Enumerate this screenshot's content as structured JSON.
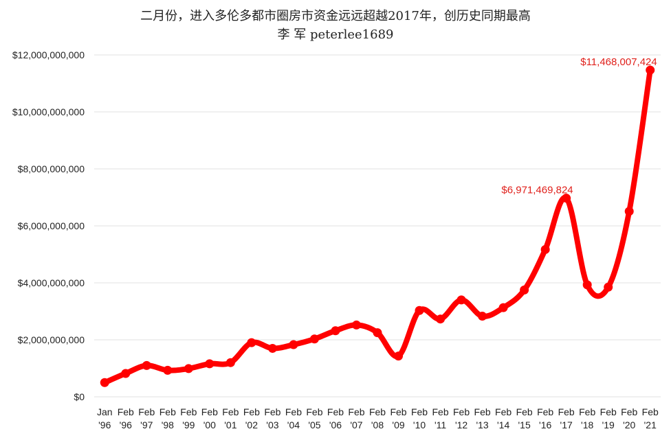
{
  "chart_data": {
    "type": "line",
    "title": "二月份，进入多伦多都市圈房市资金远远超越2017年，创历史同期最高",
    "subtitle": "李 军  peterlee1689",
    "categories": [
      [
        "Jan",
        "'96"
      ],
      [
        "Feb",
        "'96"
      ],
      [
        "Feb",
        "'97"
      ],
      [
        "Feb",
        "'98"
      ],
      [
        "Feb",
        "'99"
      ],
      [
        "Feb",
        "'00"
      ],
      [
        "Feb",
        "'01"
      ],
      [
        "Feb",
        "'02"
      ],
      [
        "Feb",
        "'03"
      ],
      [
        "Feb",
        "'04"
      ],
      [
        "Feb",
        "'05"
      ],
      [
        "Feb",
        "'06"
      ],
      [
        "Feb",
        "'07"
      ],
      [
        "Feb",
        "'08"
      ],
      [
        "Feb",
        "'09"
      ],
      [
        "Feb",
        "'10"
      ],
      [
        "Feb",
        "'11"
      ],
      [
        "Feb",
        "'12"
      ],
      [
        "Feb",
        "'13"
      ],
      [
        "Feb",
        "'14"
      ],
      [
        "Feb",
        "'15"
      ],
      [
        "Feb",
        "'16"
      ],
      [
        "Feb",
        "'17"
      ],
      [
        "Feb",
        "'18"
      ],
      [
        "Feb",
        "'19"
      ],
      [
        "Feb",
        "'20"
      ],
      [
        "Feb",
        "'21"
      ]
    ],
    "values": [
      500000000,
      820000000,
      1100000000,
      930000000,
      990000000,
      1160000000,
      1200000000,
      1900000000,
      1700000000,
      1830000000,
      2030000000,
      2320000000,
      2520000000,
      2250000000,
      1430000000,
      3030000000,
      2730000000,
      3400000000,
      2830000000,
      3130000000,
      3750000000,
      5170000000,
      6971469824,
      3930000000,
      3850000000,
      6510000000,
      11468007424
    ],
    "ylim": [
      0,
      12000000000
    ],
    "yticks": [
      {
        "value": 0,
        "label": "$0"
      },
      {
        "value": 2000000000,
        "label": "$2,000,000,000"
      },
      {
        "value": 4000000000,
        "label": "$4,000,000,000"
      },
      {
        "value": 6000000000,
        "label": "$6,000,000,000"
      },
      {
        "value": 8000000000,
        "label": "$8,000,000,000"
      },
      {
        "value": 10000000000,
        "label": "$10,000,000,000"
      },
      {
        "value": 12000000000,
        "label": "$12,000,000,000"
      }
    ],
    "annotations": [
      {
        "index": 22,
        "text": "$6,971,469,824"
      },
      {
        "index": 26,
        "text": "$11,468,007,424"
      }
    ],
    "grid": true,
    "line_color": "#ff0000",
    "label_color": "#e0201b"
  }
}
